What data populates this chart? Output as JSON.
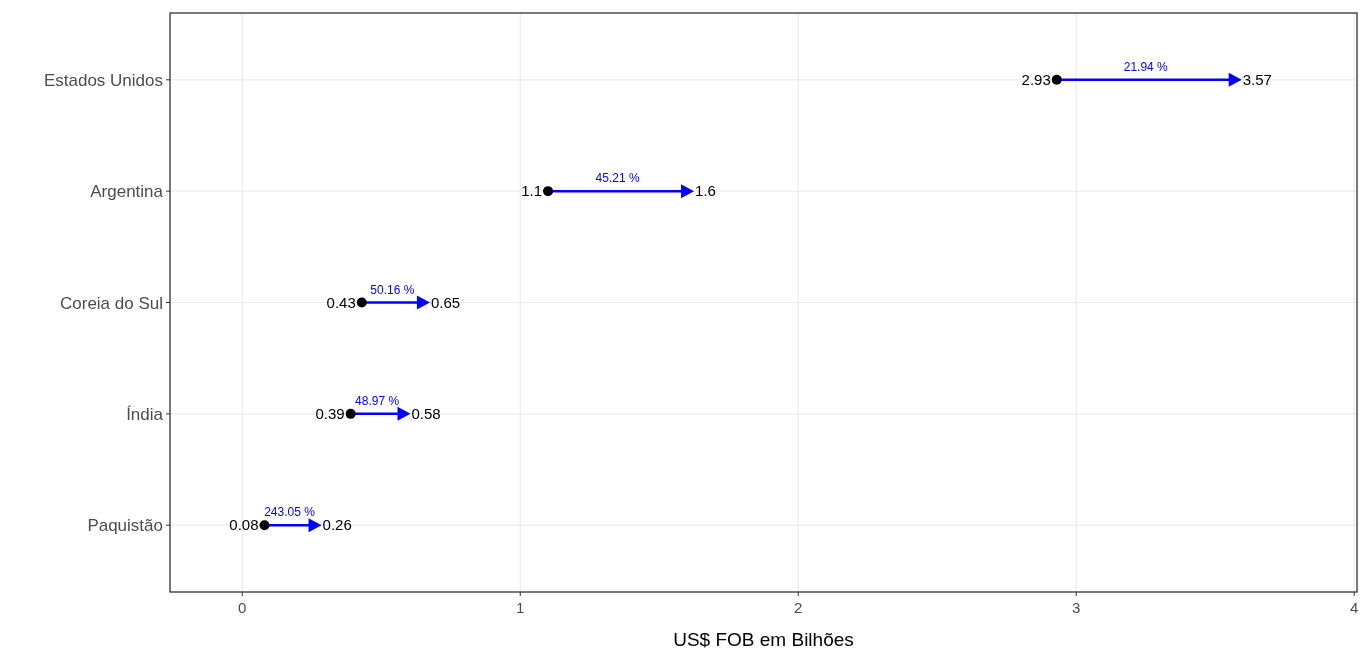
{
  "chart_data": {
    "type": "scatter",
    "orientation": "horizontal",
    "categories": [
      "Estados Unidos",
      "Argentina",
      "Coreia do Sul",
      "Índia",
      "Paquistão"
    ],
    "series": [
      {
        "color": "#000000",
        "marker": "circle",
        "values": [
          2.93,
          1.1,
          0.43,
          0.39,
          0.08
        ]
      },
      {
        "color": "#0000ff",
        "marker": "triangle",
        "values": [
          3.57,
          1.6,
          0.65,
          0.58,
          0.26
        ]
      }
    ],
    "data_labels": true,
    "xlabel": "US$ FOB em Bilhões",
    "xlim": [
      -0.26,
      4.01
    ],
    "xticks": [
      0,
      1,
      2,
      3,
      4
    ],
    "grid": true,
    "annotations": [
      "21.94 %",
      "45.21 %",
      "50.16 %",
      "48.97 %",
      "243.05 %"
    ]
  }
}
